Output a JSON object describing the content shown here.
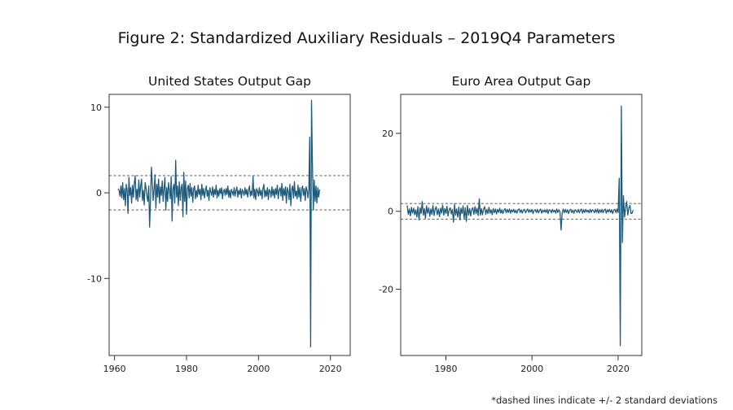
{
  "figure": {
    "title": "Figure 2: Standardized Auxiliary Residuals – 2019Q4 Parameters",
    "footnote": "*dashed lines indicate +/- 2 standard deviations",
    "line_color": "#1f5a7a"
  },
  "chart_data": [
    {
      "type": "line",
      "title": "United States Output Gap",
      "xlabel": "",
      "ylabel": "",
      "x_start": 1961.0,
      "x_step": 0.25,
      "xlim": [
        1958.5,
        2025.5
      ],
      "ylim": [
        -19,
        11.5
      ],
      "xticks": [
        1960,
        1980,
        2000,
        2020
      ],
      "yticks": [
        10,
        0,
        -10
      ],
      "bands": [
        2,
        -2
      ],
      "grid": false,
      "series": [
        {
          "values": [
            0.5,
            0.3,
            -0.4,
            0.8,
            -0.6,
            1.2,
            -0.8,
            0.5,
            -1.5,
            1.0,
            0.3,
            -2.4,
            1.8,
            -0.3,
            0.6,
            -1.2,
            0.9,
            -0.5,
            1.1,
            2.0,
            -0.8,
            0.4,
            -1.0,
            1.5,
            -0.5,
            0.8,
            1.6,
            -0.9,
            0.3,
            -1.4,
            1.2,
            0.6,
            -0.4,
            -1.0,
            0.8,
            -4.0,
            -0.8,
            3.0,
            1.2,
            -0.9,
            0.4,
            2.1,
            -1.8,
            1.0,
            -0.5,
            1.6,
            -1.2,
            0.7,
            -0.3,
            1.4,
            -1.0,
            0.5,
            1.8,
            -2.0,
            0.6,
            -1.0,
            1.2,
            0.3,
            -0.7,
            1.9,
            -3.3,
            0.5,
            1.0,
            -1.2,
            3.8,
            -0.5,
            0.8,
            -1.5,
            1.3,
            -0.9,
            0.6,
            1.0,
            -2.8,
            2.4,
            -1.0,
            1.4,
            -2.5,
            0.5,
            0.9,
            -0.6,
            1.1,
            -0.4,
            0.6,
            -1.1,
            0.5,
            0.8,
            -0.7,
            0.3,
            -0.5,
            0.9,
            -0.2,
            0.4,
            -0.8,
            1.0,
            -0.3,
            0.5,
            -0.6,
            0.2,
            0.8,
            -0.4,
            0.3,
            -0.9,
            0.6,
            0.1,
            -0.3,
            0.7,
            -0.5,
            0.4,
            -0.2,
            0.9,
            -0.6,
            0.3,
            -0.4,
            0.5,
            -0.1,
            0.6,
            -0.7,
            0.2,
            0.4,
            -0.3,
            0.5,
            -0.2,
            0.8,
            -0.5,
            0.3,
            -0.6,
            0.4,
            0.1,
            -0.3,
            0.6,
            -0.4,
            0.2,
            0.7,
            -0.5,
            0.3,
            -0.2,
            0.5,
            -0.6,
            0.4,
            0.1,
            -0.3,
            0.6,
            -0.2,
            0.4,
            -0.5,
            0.3,
            0.8,
            -0.4,
            0.2,
            -0.3,
            1.9,
            -0.6,
            0.4,
            -0.8,
            0.5,
            0.2,
            -0.4,
            0.6,
            -0.3,
            0.3,
            -0.7,
            0.5,
            1.0,
            -0.5,
            0.3,
            -0.4,
            0.6,
            -0.8,
            0.4,
            0.2,
            -0.5,
            0.7,
            -0.3,
            0.4,
            -0.6,
            0.5,
            -0.2,
            0.9,
            -0.7,
            0.3,
            0.6,
            -0.4,
            1.1,
            -0.9,
            0.5,
            -0.3,
            0.7,
            -1.2,
            0.6,
            0.2,
            -0.8,
            1.0,
            -1.5,
            0.4,
            0.8,
            -0.6,
            1.3,
            -0.4,
            0.2,
            -0.7,
            0.9,
            -0.5,
            0.6,
            -1.0,
            0.4,
            0.8,
            -0.3,
            0.5,
            -0.9,
            0.7,
            0.3,
            -0.6,
            0.4,
            6.5,
            -18.0,
            10.8,
            3.5,
            -2.0,
            1.5,
            -1.0,
            0.8,
            -1.2,
            0.6,
            -0.5,
            0.4
          ]
        }
      ]
    },
    {
      "type": "line",
      "title": "Euro Area Output Gap",
      "xlabel": "",
      "ylabel": "",
      "x_start": 1971.0,
      "x_step": 0.25,
      "xlim": [
        1969.5,
        2025.5
      ],
      "ylim": [
        -37,
        30
      ],
      "xticks": [
        1980,
        2000,
        2020
      ],
      "yticks": [
        20,
        0,
        -20
      ],
      "bands": [
        2,
        -2
      ],
      "grid": false,
      "series": [
        {
          "values": [
            1.5,
            -0.8,
            0.6,
            -1.2,
            1.0,
            -0.5,
            0.8,
            -0.9,
            0.4,
            -1.5,
            1.2,
            -2.2,
            0.9,
            -0.6,
            2.5,
            -1.0,
            0.7,
            -1.8,
            1.4,
            -0.5,
            0.9,
            -1.3,
            0.6,
            -0.8,
            1.5,
            -1.1,
            0.5,
            1.2,
            -0.9,
            0.6,
            -1.4,
            0.8,
            -0.5,
            1.6,
            -1.0,
            0.7,
            -0.6,
            1.3,
            -1.2,
            0.4,
            0.9,
            -0.7,
            0.5,
            -2.8,
            1.8,
            -1.0,
            0.6,
            -1.5,
            1.1,
            -2.2,
            0.8,
            -0.6,
            1.4,
            -1.8,
            0.9,
            -2.6,
            1.5,
            -1.0,
            0.7,
            -1.2,
            0.5,
            0.9,
            -0.8,
            1.2,
            -0.6,
            0.8,
            -1.1,
            3.2,
            -1.0,
            0.7,
            -0.9,
            0.6,
            1.2,
            -0.8,
            0.5,
            -0.6,
            1.0,
            -0.5,
            0.4,
            -0.9,
            0.7,
            -0.4,
            0.6,
            -0.7,
            0.5,
            -0.3,
            0.8,
            -0.5,
            0.4,
            -0.6,
            0.3,
            0.7,
            -0.4,
            0.5,
            -0.3,
            0.6,
            -0.5,
            0.4,
            -0.2,
            0.5,
            -0.4,
            0.3,
            -0.5,
            0.4,
            0.6,
            -0.3,
            0.4,
            -0.5,
            0.3,
            0.5,
            -0.4,
            0.2,
            0.6,
            -0.3,
            0.4,
            -0.2,
            0.5,
            -0.6,
            0.3,
            0.4,
            -0.3,
            0.5,
            -0.4,
            0.2,
            0.6,
            -0.5,
            0.3,
            -0.2,
            0.4,
            -0.3,
            0.5,
            -0.6,
            0.4,
            0.3,
            -0.4,
            0.5,
            -0.2,
            0.3,
            -0.5,
            0.6,
            -0.3,
            0.4,
            -0.2,
            -4.8,
            -0.5,
            0.6,
            -0.4,
            0.5,
            -0.3,
            0.4,
            -0.6,
            0.3,
            0.5,
            -0.4,
            0.3,
            -0.5,
            0.4,
            0.2,
            -0.3,
            0.5,
            -0.4,
            0.3,
            0.6,
            -0.5,
            0.4,
            -0.3,
            0.5,
            -0.2,
            0.3,
            -0.4,
            0.5,
            -0.3,
            0.4,
            0.2,
            -0.4,
            0.5,
            -0.3,
            0.6,
            -0.5,
            0.4,
            -0.3,
            0.5,
            -0.4,
            0.3,
            0.6,
            -0.5,
            0.4,
            -0.2,
            0.5,
            -0.3,
            0.4,
            -0.6,
            0.3,
            0.5,
            -0.4,
            0.6,
            -0.3,
            8.5,
            -34.5,
            27.0,
            -8.0,
            4.0,
            -1.5,
            1.0,
            2.5,
            -1.0,
            0.8,
            1.5,
            -0.6,
            -0.5,
            0.3
          ]
        }
      ]
    }
  ]
}
